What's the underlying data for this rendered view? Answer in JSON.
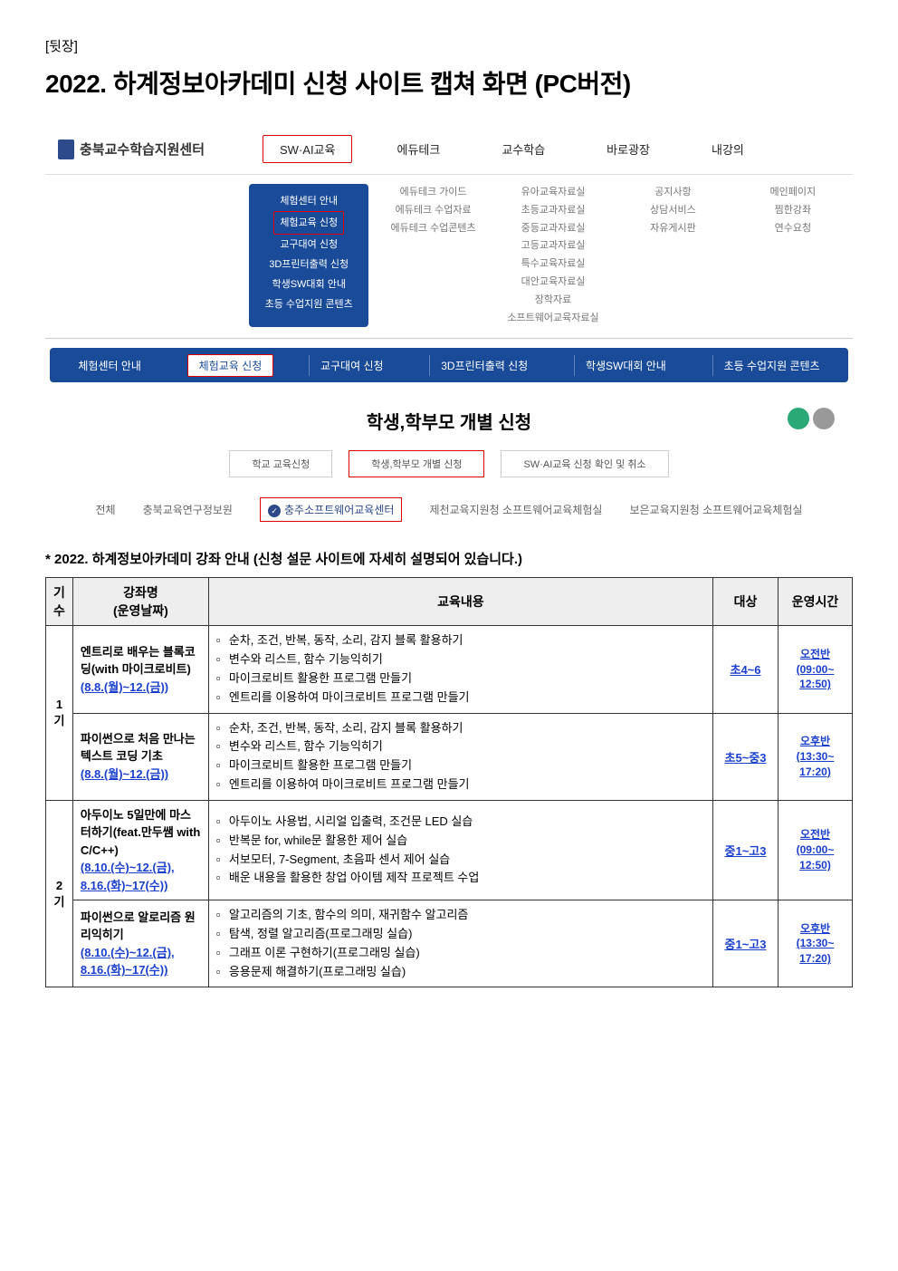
{
  "page_label": "[뒷장]",
  "main_title": "2022. 하계정보아카데미 신청 사이트 캡쳐 화면 (PC버전)",
  "logo_text": "충북교수학습지원센터",
  "topnav": [
    "SW·AI교육",
    "에듀테크",
    "교수학습",
    "바로광장",
    "내강의"
  ],
  "megamenu": {
    "col0": [
      "체험센터 안내",
      "체험교육 신청",
      "교구대여 신청",
      "3D프린터출력 신청",
      "학생SW대회 안내",
      "초등 수업지원 콘텐츠"
    ],
    "col1": [
      "에듀테크 가이드",
      "에듀테크 수업자료",
      "에듀테크 수업콘텐츠"
    ],
    "col2": [
      "유아교육자료실",
      "초등교과자료실",
      "중등교과자료실",
      "고등교과자료실",
      "특수교육자료실",
      "대안교육자료실",
      "장학자료",
      "소프트웨어교육자료실"
    ],
    "col3": [
      "공지사항",
      "상담서비스",
      "자유게시판"
    ],
    "col4": [
      "메인페이지",
      "찜한강좌",
      "연수요청"
    ]
  },
  "subnav": [
    "체험센터 안내",
    "체험교육 신청",
    "교구대여 신청",
    "3D프린터출력 신청",
    "학생SW대회 안내",
    "초등 수업지원 콘텐츠"
  ],
  "page_heading": "학생,학부모 개별 신청",
  "tab3": [
    "학교 교육신청",
    "학생,학부모 개별 신청",
    "SW·AI교육 신청 확인 및 취소"
  ],
  "filters": [
    "전체",
    "충북교육연구정보원",
    "충주소프트웨어교육센터",
    "제천교육지원청 소프트웨어교육체험실",
    "보은교육지원청 소프트웨어교육체험실"
  ],
  "course_intro": "2022. 하계정보아카데미 강좌 안내 (신청 설문 사이트에 자세히 설명되어 있습니다.)",
  "table": {
    "headers": [
      "기수",
      "강좌명\n(운영날짜)",
      "교육내용",
      "대상",
      "운영시간"
    ],
    "terms": [
      {
        "label": "1기",
        "rows": [
          {
            "title": "엔트리로 배우는 블록코딩(with 마이크로비트)",
            "dates": "(8.8.(월)~12.(금))",
            "bullets": [
              "순차, 조건, 반복, 동작, 소리, 감지 블록 활용하기",
              "변수와 리스트, 함수 기능익히기",
              "마이크로비트 활용한 프로그램 만들기",
              "엔트리를 이용하여 마이크로비트 프로그램 만들기"
            ],
            "target": "초4~6",
            "time": "오전반\n(09:00~\n12:50)"
          },
          {
            "title": "파이썬으로 처음 만나는 텍스트 코딩 기초",
            "dates": "(8.8.(월)~12.(금))",
            "bullets": [
              "순차, 조건, 반복, 동작, 소리, 감지 블록 활용하기",
              "변수와 리스트, 함수 기능익히기",
              "마이크로비트 활용한 프로그램 만들기",
              "엔트리를 이용하여 마이크로비트 프로그램 만들기"
            ],
            "target": "초5~중3",
            "time": "오후반\n(13:30~\n17:20)"
          }
        ]
      },
      {
        "label": "2기",
        "rows": [
          {
            "title": "아두이노 5일만에 마스터하기(feat.만두쌤 with C/C++)",
            "dates": "(8.10.(수)~12.(금),\n8.16.(화)~17(수))",
            "bullets": [
              "아두이노 사용법, 시리얼 입출력, 조건문 LED 실습",
              "반복문 for, while문 활용한 제어 실습",
              "서보모터, 7-Segment, 초음파 센서 제어 실습",
              "배운 내용을 활용한 창업 아이템 제작 프로젝트 수업"
            ],
            "target": "중1~고3",
            "time": "오전반\n(09:00~\n12:50)"
          },
          {
            "title": "파이썬으로 알로리즘 원리익히기",
            "dates": "(8.10.(수)~12.(금),\n8.16.(화)~17(수))",
            "bullets": [
              "알고리즘의 기초, 함수의 의미, 재귀함수 알고리즘",
              "탐색, 정렬 알고리즘(프로그래밍 실습)",
              "그래프 이론 구현하기(프로그래밍 실습)",
              "응용문제 해결하기(프로그래밍 실습)"
            ],
            "target": "중1~고3",
            "time": "오후반\n(13:30~\n17:20)"
          }
        ]
      }
    ]
  },
  "colors": {
    "primary_blue": "#1a4b99",
    "link_blue": "#1a3fcc",
    "highlight_red": "#d00",
    "header_bg": "#eee"
  }
}
